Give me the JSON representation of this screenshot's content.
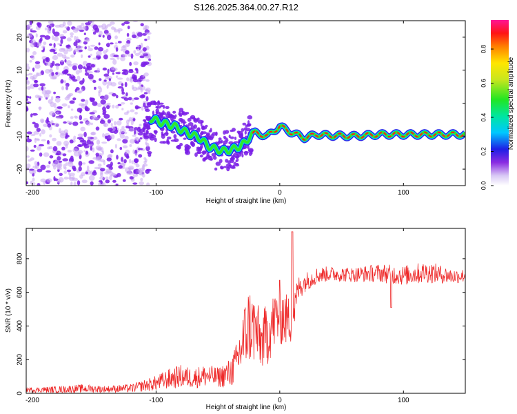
{
  "title": "S126.2025.364.00.27.R12",
  "colors": {
    "signal": "#ee2a2a",
    "scatter": "#7a1fe6",
    "scatter_light": "#c9a6f2",
    "track_core": "#ff1a1a",
    "track_mid": "#2ee82e",
    "track_outer": "#2a2ae8"
  },
  "chart_data": [
    {
      "type": "heatmap",
      "title": "S126.2025.364.00.27.R12",
      "xlabel": "Height of straight line (km)",
      "ylabel": "Frequency (Hz)",
      "xlim": [
        -205,
        150
      ],
      "ylim": [
        -25,
        25
      ],
      "xticks": [
        -200,
        -100,
        0,
        100
      ],
      "xtick_labels": [
        "-200",
        "-100",
        "0",
        "100"
      ],
      "yticks": [
        -20,
        -10,
        0,
        10,
        20
      ],
      "ytick_labels": [
        "-20",
        "-10",
        "0",
        "10",
        "20"
      ],
      "colorbar": {
        "label": "Normalized spectral amplitude",
        "range": [
          0.0,
          0.97
        ],
        "ticks": [
          0.0,
          0.2,
          0.4,
          0.6,
          0.8
        ],
        "tick_labels": [
          "0.0",
          "0.2",
          "0.4",
          "0.6",
          "0.8"
        ]
      },
      "ridge": {
        "x": [
          -105,
          -95,
          -85,
          -75,
          -65,
          -58,
          -52,
          -45,
          -38,
          -32,
          -28,
          -24,
          -20,
          -10,
          0,
          10,
          20,
          30,
          40,
          60,
          80,
          100,
          120,
          140,
          150
        ],
        "frequency": [
          -4.5,
          -6,
          -7,
          -9,
          -10.5,
          -13,
          -14,
          -14.5,
          -14,
          -13,
          -12,
          -10,
          -9,
          -10,
          -7,
          -9,
          -10.5,
          -9.5,
          -9.8,
          -10,
          -9.5,
          -9.5,
          -9.5,
          -9.5,
          -9.5
        ]
      }
    },
    {
      "type": "line",
      "xlabel": "Height of straight line (km)",
      "ylabel": "SNR (10 * v/v)",
      "xlim": [
        -205,
        150
      ],
      "ylim": [
        0,
        980
      ],
      "xticks": [
        -200,
        -100,
        0,
        100
      ],
      "xtick_labels": [
        "-200",
        "-100",
        "0",
        "100"
      ],
      "yticks": [
        0,
        200,
        400,
        600,
        800
      ],
      "ytick_labels": [
        "0",
        "200",
        "400",
        "600",
        "800"
      ],
      "series": [
        {
          "name": "SNR",
          "x": [
            -205,
            -180,
            -160,
            -140,
            -120,
            -100,
            -90,
            -80,
            -70,
            -60,
            -50,
            -40,
            -35,
            -30,
            -25,
            -20,
            -15,
            -10,
            -5,
            0,
            5,
            10,
            15,
            20,
            25,
            30,
            40,
            60,
            80,
            100,
            120,
            140,
            150
          ],
          "values": [
            20,
            22,
            28,
            25,
            30,
            60,
            85,
            100,
            90,
            105,
            95,
            120,
            180,
            300,
            410,
            380,
            300,
            360,
            420,
            480,
            440,
            430,
            620,
            660,
            680,
            700,
            710,
            705,
            715,
            700,
            720,
            695,
            700
          ],
          "noise": [
            15,
            20,
            25,
            20,
            25,
            45,
            60,
            70,
            60,
            70,
            60,
            90,
            120,
            200,
            240,
            220,
            160,
            200,
            180,
            200,
            160,
            140,
            80,
            60,
            55,
            50,
            45,
            45,
            55,
            60,
            65,
            45,
            40
          ]
        }
      ]
    }
  ]
}
